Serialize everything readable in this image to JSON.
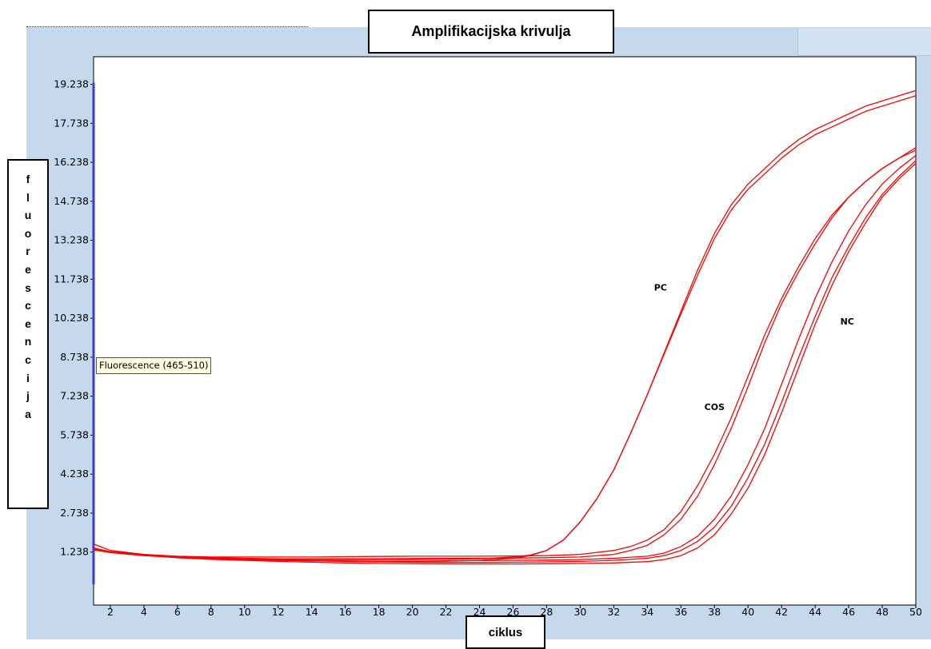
{
  "chart_data": {
    "type": "line",
    "title": "Amplifikacijska krivulja",
    "xlabel": "ciklus",
    "ylabel": "fluorescencija",
    "xlim": [
      1,
      50
    ],
    "ylim": [
      -0.8,
      20.3
    ],
    "x_ticks": [
      2,
      4,
      6,
      8,
      10,
      12,
      14,
      16,
      18,
      20,
      22,
      24,
      26,
      28,
      30,
      32,
      34,
      36,
      38,
      40,
      42,
      44,
      46,
      48,
      50
    ],
    "y_ticks": [
      1.238,
      2.738,
      4.238,
      5.738,
      7.238,
      8.738,
      10.238,
      11.738,
      13.238,
      14.738,
      16.238,
      17.738,
      19.238
    ],
    "y_tick_labels": [
      "1.238",
      "2.738",
      "4.238",
      "5.738",
      "7.238",
      "8.738",
      "10.238",
      "11.738",
      "13.238",
      "14.738",
      "16.238",
      "17.738",
      "19.238"
    ],
    "series_color": "#ff0000",
    "marker_line": {
      "x": 1,
      "y_from": 0.0,
      "y_to": 19.3,
      "color": "#3b3bdc"
    },
    "tooltip": "Fluorescence (465-510)",
    "annotations": [
      {
        "text": "PC",
        "x": 34.4,
        "y": 11.3
      },
      {
        "text": "COS",
        "x": 37.4,
        "y": 6.7
      },
      {
        "text": "NC",
        "x": 45.5,
        "y": 10.0
      }
    ],
    "series": [
      {
        "x": [
          1,
          2,
          4,
          6,
          8,
          10,
          12,
          14,
          16,
          18,
          20,
          22,
          24,
          26,
          27,
          28,
          29,
          30,
          31,
          32,
          33,
          34,
          35,
          36,
          37,
          38,
          39,
          40,
          41,
          42,
          43,
          44,
          45,
          46,
          47,
          48,
          49,
          50
        ],
        "values": [
          1.55,
          1.3,
          1.15,
          1.05,
          1.0,
          0.98,
          0.96,
          0.95,
          0.95,
          0.95,
          0.95,
          0.96,
          0.98,
          1.05,
          1.12,
          1.3,
          1.7,
          2.4,
          3.3,
          4.4,
          5.8,
          7.3,
          8.9,
          10.5,
          12.1,
          13.5,
          14.6,
          15.4,
          16.0,
          16.6,
          17.1,
          17.5,
          17.8,
          18.1,
          18.4,
          18.6,
          18.8,
          19.0
        ]
      },
      {
        "x": [
          1,
          2,
          4,
          6,
          8,
          10,
          12,
          14,
          16,
          18,
          20,
          22,
          24,
          26,
          27,
          28,
          29,
          30,
          31,
          32,
          33,
          34,
          35,
          36,
          37,
          38,
          39,
          40,
          41,
          42,
          43,
          44,
          45,
          46,
          47,
          48,
          49,
          50
        ],
        "values": [
          1.4,
          1.25,
          1.12,
          1.03,
          0.98,
          0.95,
          0.92,
          0.9,
          0.89,
          0.88,
          0.88,
          0.89,
          0.92,
          1.0,
          1.1,
          1.3,
          1.7,
          2.4,
          3.3,
          4.4,
          5.8,
          7.3,
          8.85,
          10.4,
          11.9,
          13.3,
          14.4,
          15.2,
          15.8,
          16.4,
          16.9,
          17.3,
          17.6,
          17.9,
          18.2,
          18.4,
          18.6,
          18.8
        ]
      },
      {
        "x": [
          1,
          2,
          4,
          6,
          8,
          10,
          12,
          14,
          16,
          18,
          20,
          22,
          24,
          26,
          28,
          30,
          32,
          33,
          34,
          35,
          36,
          37,
          38,
          39,
          40,
          41,
          42,
          43,
          44,
          45,
          46,
          47,
          48,
          49,
          50
        ],
        "values": [
          1.35,
          1.25,
          1.15,
          1.08,
          1.05,
          1.05,
          1.05,
          1.05,
          1.06,
          1.07,
          1.08,
          1.08,
          1.08,
          1.09,
          1.1,
          1.15,
          1.3,
          1.45,
          1.7,
          2.1,
          2.8,
          3.8,
          5.0,
          6.4,
          8.0,
          9.6,
          11.0,
          12.2,
          13.3,
          14.2,
          14.9,
          15.5,
          16.0,
          16.4,
          16.8
        ]
      },
      {
        "x": [
          1,
          2,
          4,
          6,
          8,
          10,
          12,
          14,
          16,
          18,
          20,
          22,
          24,
          26,
          28,
          30,
          32,
          33,
          34,
          35,
          36,
          37,
          38,
          39,
          40,
          41,
          42,
          43,
          44,
          45,
          46,
          47,
          48,
          49,
          50
        ],
        "values": [
          1.32,
          1.22,
          1.13,
          1.06,
          1.02,
          1.0,
          0.98,
          0.98,
          0.98,
          0.98,
          0.99,
          1.0,
          1.0,
          1.01,
          1.02,
          1.05,
          1.15,
          1.3,
          1.5,
          1.9,
          2.5,
          3.4,
          4.6,
          6.0,
          7.6,
          9.3,
          10.8,
          12.0,
          13.1,
          14.1,
          14.9,
          15.5,
          16.0,
          16.4,
          16.7
        ]
      },
      {
        "x": [
          1,
          2,
          4,
          6,
          8,
          10,
          12,
          14,
          16,
          18,
          20,
          22,
          24,
          26,
          28,
          30,
          32,
          34,
          35,
          36,
          37,
          38,
          39,
          40,
          41,
          42,
          43,
          44,
          45,
          46,
          47,
          48,
          49,
          50
        ],
        "values": [
          1.38,
          1.25,
          1.12,
          1.02,
          0.96,
          0.92,
          0.88,
          0.85,
          0.82,
          0.8,
          0.79,
          0.78,
          0.78,
          0.78,
          0.79,
          0.8,
          0.82,
          0.87,
          0.95,
          1.1,
          1.4,
          1.9,
          2.7,
          3.7,
          5.0,
          6.6,
          8.3,
          10.0,
          11.5,
          12.8,
          13.9,
          14.9,
          15.6,
          16.2
        ]
      },
      {
        "x": [
          1,
          2,
          4,
          6,
          8,
          10,
          12,
          14,
          16,
          18,
          20,
          22,
          24,
          26,
          28,
          30,
          32,
          34,
          35,
          36,
          37,
          38,
          39,
          40,
          41,
          42,
          43,
          44,
          45,
          46,
          47,
          48,
          49,
          50
        ],
        "values": [
          1.36,
          1.24,
          1.12,
          1.04,
          1.0,
          0.96,
          0.92,
          0.9,
          0.88,
          0.86,
          0.85,
          0.84,
          0.84,
          0.85,
          0.86,
          0.88,
          0.92,
          1.0,
          1.1,
          1.3,
          1.65,
          2.2,
          3.0,
          4.1,
          5.4,
          7.0,
          8.7,
          10.3,
          11.8,
          13.0,
          14.1,
          15.0,
          15.7,
          16.3
        ]
      },
      {
        "x": [
          1,
          2,
          4,
          6,
          8,
          10,
          12,
          14,
          16,
          18,
          20,
          22,
          24,
          26,
          28,
          30,
          32,
          34,
          35,
          36,
          37,
          38,
          39,
          40,
          41,
          42,
          43,
          44,
          45,
          46,
          47,
          48,
          49,
          50
        ],
        "values": [
          1.34,
          1.22,
          1.1,
          1.03,
          0.99,
          0.96,
          0.93,
          0.91,
          0.9,
          0.89,
          0.89,
          0.9,
          0.91,
          0.92,
          0.93,
          0.95,
          1.0,
          1.08,
          1.2,
          1.45,
          1.85,
          2.5,
          3.4,
          4.6,
          6.0,
          7.7,
          9.4,
          11.0,
          12.4,
          13.6,
          14.6,
          15.4,
          16.0,
          16.5
        ]
      }
    ]
  }
}
